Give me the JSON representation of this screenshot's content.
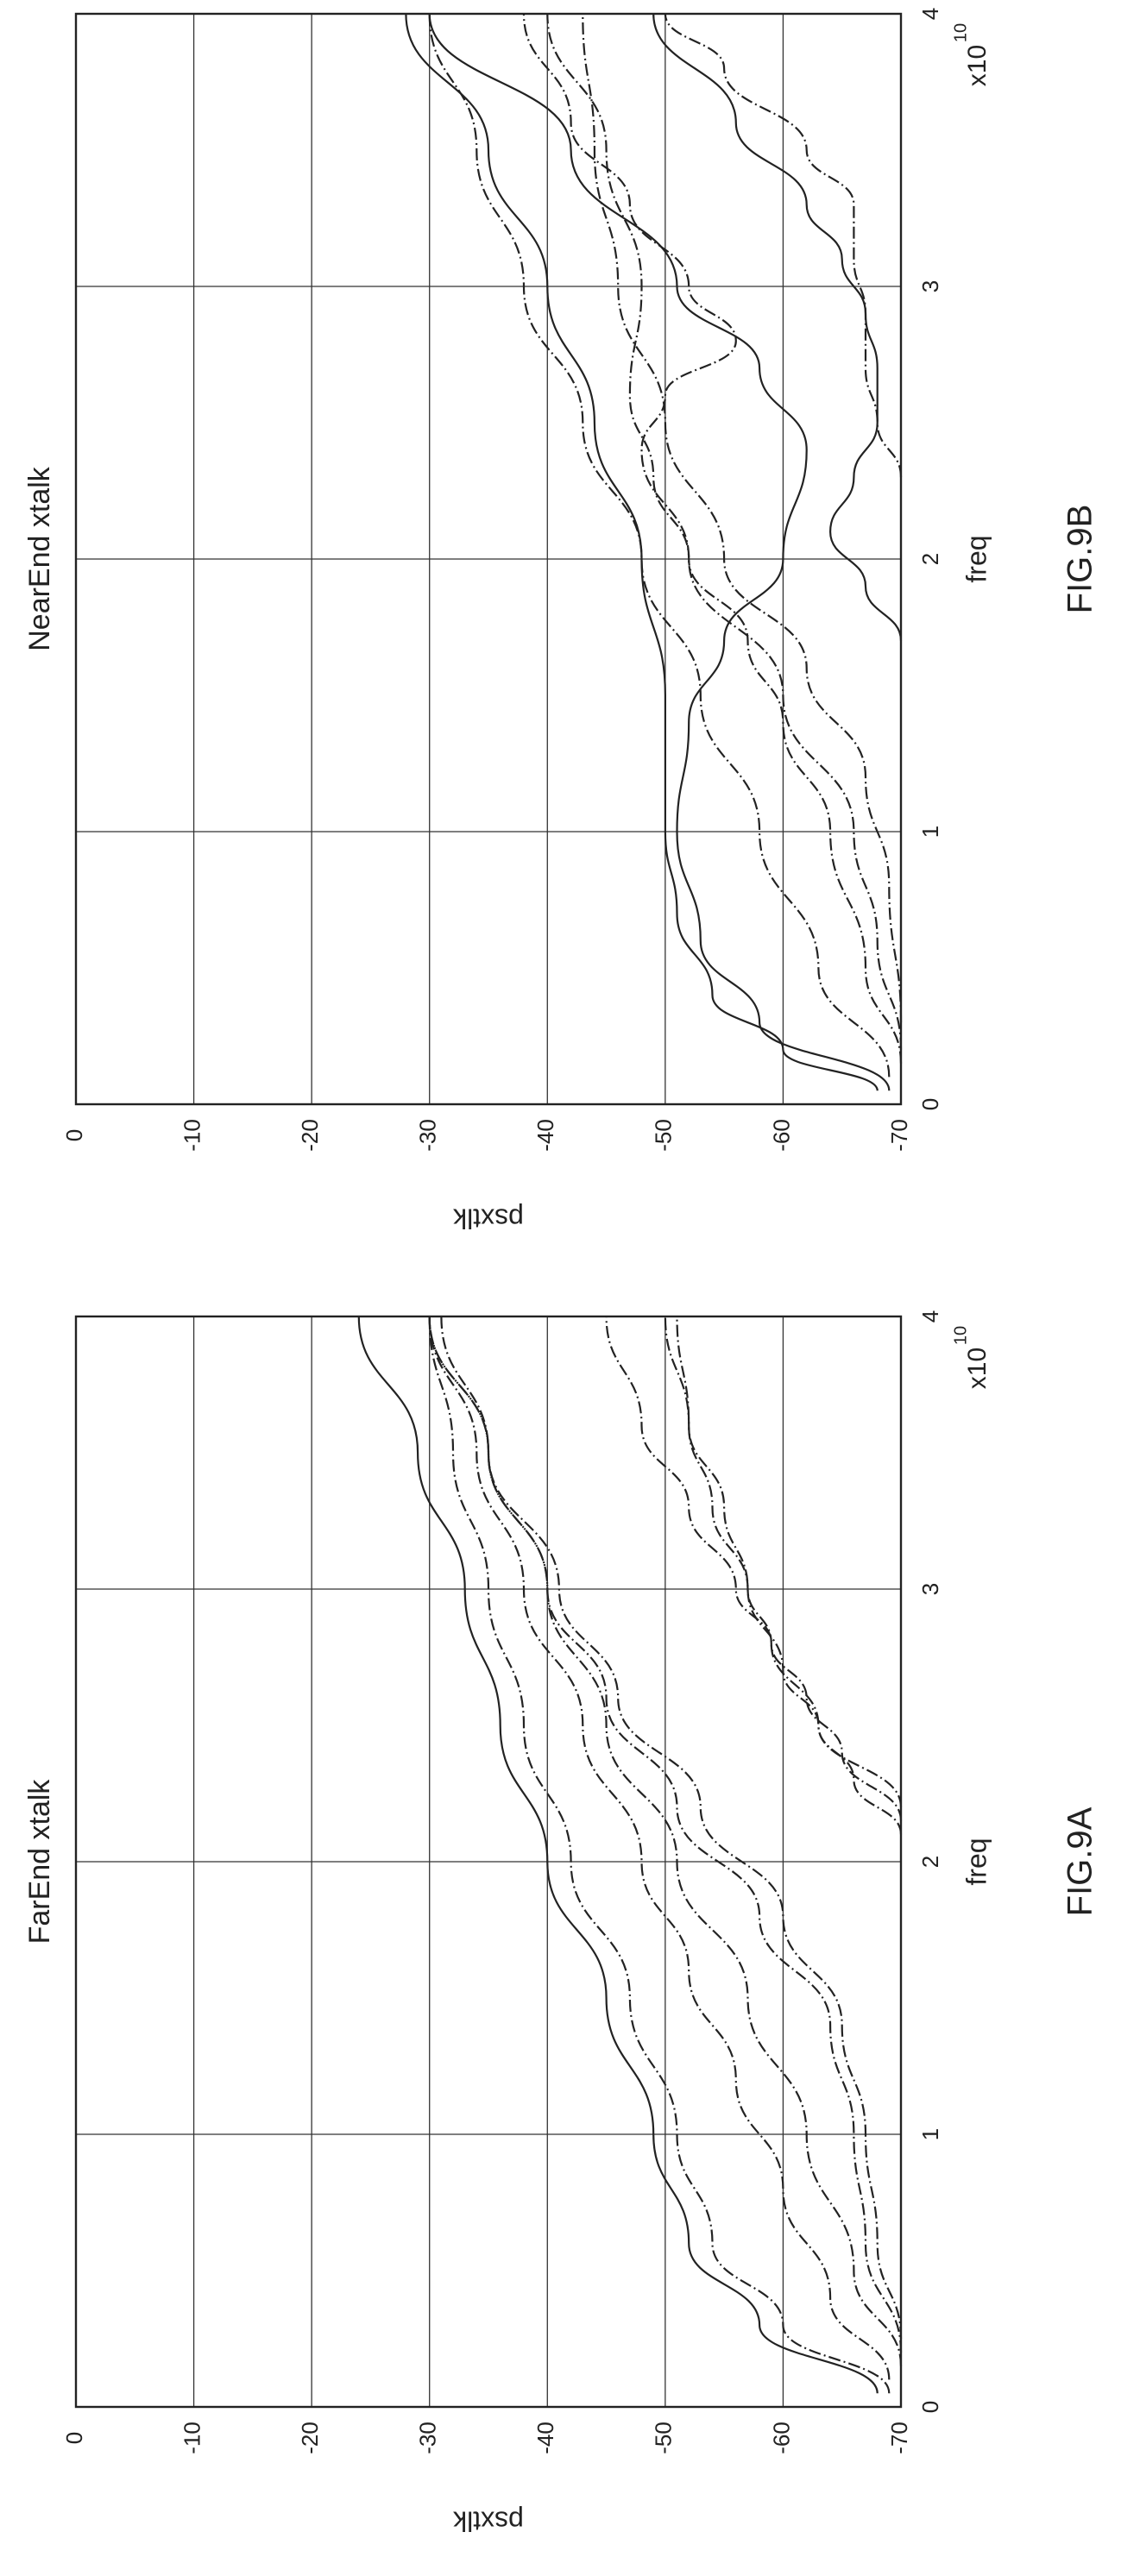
{
  "chart_data": [
    {
      "id": "fig9a",
      "type": "line",
      "title": "FarEnd xtalk",
      "xlabel": "freq",
      "ylabel": "psxtlk",
      "x_multiplier": "x10",
      "x_multiplier_exp": "10",
      "xlim": [
        0,
        4
      ],
      "ylim": [
        -70,
        0
      ],
      "xticks": [
        "0",
        "1",
        "2",
        "3",
        "4"
      ],
      "yticks": [
        "0",
        "-10",
        "-20",
        "-30",
        "-40",
        "-50",
        "-60",
        "-70"
      ],
      "grid": true,
      "figure_label": "FIG.9A",
      "series": [
        {
          "style": "solid",
          "x": [
            0.05,
            0.3,
            0.6,
            1.0,
            1.5,
            2.0,
            2.5,
            3.0,
            3.5,
            4.0
          ],
          "y": [
            -68,
            -58,
            -52,
            -49,
            -45,
            -40,
            -36,
            -33,
            -29,
            -24
          ]
        },
        {
          "style": "dashdot",
          "x": [
            0.05,
            0.3,
            0.6,
            1.0,
            1.5,
            2.0,
            2.5,
            3.0,
            3.5,
            4.0
          ],
          "y": [
            -69,
            -60,
            -54,
            -51,
            -47,
            -42,
            -38,
            -35,
            -32,
            -30
          ]
        },
        {
          "style": "dashdot",
          "x": [
            0.1,
            0.4,
            0.8,
            1.2,
            1.6,
            2.0,
            2.5,
            3.0,
            3.5,
            4.0
          ],
          "y": [
            -69,
            -64,
            -60,
            -56,
            -52,
            -48,
            -43,
            -38,
            -34,
            -30
          ]
        },
        {
          "style": "dashdot",
          "x": [
            0.15,
            0.5,
            1.0,
            1.5,
            2.0,
            2.5,
            3.0,
            3.5,
            4.0
          ],
          "y": [
            -70,
            -66,
            -62,
            -57,
            -51,
            -45,
            -40,
            -35,
            -30
          ]
        },
        {
          "style": "dashdot",
          "x": [
            0.2,
            0.6,
            1.0,
            1.4,
            1.8,
            2.2,
            2.6,
            3.0,
            3.5,
            4.0
          ],
          "y": [
            -70,
            -67,
            -66,
            -64,
            -58,
            -51,
            -45,
            -40,
            -35,
            -30
          ]
        },
        {
          "style": "dashdot",
          "x": [
            0.25,
            0.6,
            1.0,
            1.4,
            1.8,
            2.2,
            2.6,
            3.0,
            3.5,
            4.0
          ],
          "y": [
            -70,
            -68,
            -67,
            -65,
            -60,
            -53,
            -46,
            -41,
            -35,
            -31
          ]
        },
        {
          "style": "dashdot",
          "x": [
            2.1,
            2.3,
            2.5,
            2.7,
            3.0,
            3.3,
            3.6,
            4.0
          ],
          "y": [
            -70,
            -66,
            -63,
            -60,
            -57,
            -55,
            -52,
            -50
          ]
        },
        {
          "style": "dashdot",
          "x": [
            2.15,
            2.4,
            2.6,
            2.8,
            3.0,
            3.3,
            3.6,
            4.0
          ],
          "y": [
            -70,
            -65,
            -62,
            -59,
            -57,
            -54,
            -52,
            -51
          ]
        },
        {
          "style": "dashdot",
          "x": [
            2.2,
            2.5,
            2.8,
            3.0,
            3.3,
            3.6,
            4.0
          ],
          "y": [
            -70,
            -63,
            -59,
            -56,
            -52,
            -48,
            -45
          ]
        }
      ]
    },
    {
      "id": "fig9b",
      "type": "line",
      "title": "NearEnd xtalk",
      "xlabel": "freq",
      "ylabel": "psxtlk",
      "x_multiplier": "x10",
      "x_multiplier_exp": "10",
      "xlim": [
        0,
        4
      ],
      "ylim": [
        -70,
        0
      ],
      "xticks": [
        "0",
        "1",
        "2",
        "3",
        "4"
      ],
      "yticks": [
        "0",
        "-10",
        "-20",
        "-30",
        "-40",
        "-50",
        "-60",
        "-70"
      ],
      "grid": true,
      "figure_label": "FIG.9B",
      "series": [
        {
          "style": "solid",
          "x": [
            0.05,
            0.2,
            0.4,
            0.7,
            1.0,
            1.5,
            2.0,
            2.5,
            3.0,
            3.5,
            4.0
          ],
          "y": [
            -68,
            -60,
            -54,
            -51,
            -50,
            -50,
            -48,
            -44,
            -40,
            -35,
            -28
          ]
        },
        {
          "style": "solid",
          "x": [
            0.05,
            0.3,
            0.6,
            1.0,
            1.4,
            1.7,
            2.0,
            2.4,
            2.7,
            3.0,
            3.5,
            4.0
          ],
          "y": [
            -69,
            -58,
            -53,
            -51,
            -52,
            -55,
            -60,
            -62,
            -58,
            -51,
            -42,
            -30
          ]
        },
        {
          "style": "dashdot",
          "x": [
            0.1,
            0.5,
            1.0,
            1.5,
            2.0,
            2.5,
            3.0,
            3.5,
            4.0
          ],
          "y": [
            -69,
            -63,
            -58,
            -53,
            -48,
            -43,
            -38,
            -34,
            -30
          ]
        },
        {
          "style": "dashdot",
          "x": [
            0.15,
            0.5,
            1.0,
            1.4,
            1.7,
            2.0,
            2.3,
            2.6,
            3.0,
            3.5,
            4.0
          ],
          "y": [
            -70,
            -67,
            -64,
            -60,
            -57,
            -52,
            -49,
            -47,
            -48,
            -45,
            -40
          ]
        },
        {
          "style": "dashdot",
          "x": [
            0.2,
            0.6,
            1.0,
            1.5,
            2.0,
            2.4,
            2.6,
            2.8,
            3.0,
            3.3,
            3.6,
            4.0
          ],
          "y": [
            -70,
            -68,
            -66,
            -60,
            -52,
            -48,
            -50,
            -56,
            -52,
            -47,
            -42,
            -38
          ]
        },
        {
          "style": "dashdot",
          "x": [
            0.3,
            0.8,
            1.2,
            1.6,
            2.0,
            2.5,
            3.0,
            3.5,
            4.0
          ],
          "y": [
            -70,
            -69,
            -67,
            -62,
            -55,
            -50,
            -46,
            -44,
            -43
          ]
        },
        {
          "style": "solid",
          "x": [
            1.7,
            1.9,
            2.1,
            2.3,
            2.5,
            2.7,
            2.9,
            3.1,
            3.3,
            3.6,
            4.0
          ],
          "y": [
            -70,
            -67,
            -64,
            -66,
            -68,
            -68,
            -67,
            -65,
            -62,
            -56,
            -49
          ]
        },
        {
          "style": "dashdot",
          "x": [
            2.3,
            2.5,
            2.7,
            2.9,
            3.1,
            3.3,
            3.5,
            3.8,
            4.0
          ],
          "y": [
            -70,
            -68,
            -67,
            -67,
            -66,
            -66,
            -62,
            -55,
            -50
          ]
        }
      ]
    }
  ]
}
